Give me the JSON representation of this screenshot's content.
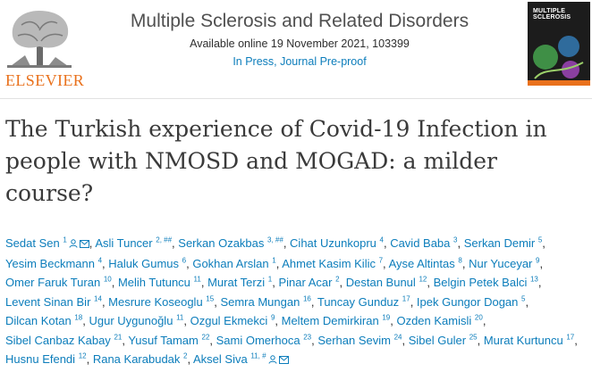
{
  "publisher": {
    "name": "ELSEVIER"
  },
  "journal": {
    "title": "Multiple Sclerosis and Related Disorders",
    "availability": "Available online 19 November 2021, 103399",
    "status": "In Press, Journal Pre-proof"
  },
  "cover": {
    "title": "MULTIPLE SCLEROSIS"
  },
  "article": {
    "title": "The Turkish experience of Covid-19 Infection in people with NMOSD and MOGAD: a milder course?"
  },
  "authors": [
    {
      "name": "Sedat Sen",
      "sup": "1",
      "icons": [
        "person",
        "mail"
      ]
    },
    {
      "name": "Asli Tuncer",
      "sup": "2, ##",
      "icons": []
    },
    {
      "name": "Serkan Ozakbas",
      "sup": "3, ##",
      "icons": []
    },
    {
      "name": "Cihat Uzunkopru",
      "sup": "4",
      "icons": []
    },
    {
      "name": "Cavid Baba",
      "sup": "3",
      "icons": []
    },
    {
      "name": "Serkan Demir",
      "sup": "5",
      "icons": []
    },
    {
      "name": "Yesim Beckmann",
      "sup": "4",
      "icons": []
    },
    {
      "name": "Haluk Gumus",
      "sup": "6",
      "icons": []
    },
    {
      "name": "Gokhan Arslan",
      "sup": "1",
      "icons": []
    },
    {
      "name": "Ahmet Kasim Kilic",
      "sup": "7",
      "icons": []
    },
    {
      "name": "Ayse Altintas",
      "sup": "8",
      "icons": []
    },
    {
      "name": "Nur Yuceyar",
      "sup": "9",
      "icons": []
    },
    {
      "name": "Omer Faruk Turan",
      "sup": "10",
      "icons": []
    },
    {
      "name": "Melih Tutuncu",
      "sup": "11",
      "icons": []
    },
    {
      "name": "Murat Terzi",
      "sup": "1",
      "icons": []
    },
    {
      "name": "Pinar Acar",
      "sup": "2",
      "icons": []
    },
    {
      "name": "Destan Bunul",
      "sup": "12",
      "icons": []
    },
    {
      "name": "Belgin Petek Balci",
      "sup": "13",
      "icons": []
    },
    {
      "name": "Levent Sinan Bir",
      "sup": "14",
      "icons": []
    },
    {
      "name": "Mesrure Koseoglu",
      "sup": "15",
      "icons": []
    },
    {
      "name": "Semra Mungan",
      "sup": "16",
      "icons": []
    },
    {
      "name": "Tuncay Gunduz",
      "sup": "17",
      "icons": []
    },
    {
      "name": "Ipek Gungor Dogan",
      "sup": "5",
      "icons": []
    },
    {
      "name": "Dilcan Kotan",
      "sup": "18",
      "icons": []
    },
    {
      "name": "Ugur Uygunoğlu",
      "sup": "11",
      "icons": []
    },
    {
      "name": "Ozgul Ekmekci",
      "sup": "9",
      "icons": []
    },
    {
      "name": "Meltem Demirkiran",
      "sup": "19",
      "icons": []
    },
    {
      "name": "Ozden Kamisli",
      "sup": "20",
      "icons": []
    },
    {
      "name": "Sibel Canbaz Kabay",
      "sup": "21",
      "icons": []
    },
    {
      "name": "Yusuf Tamam",
      "sup": "22",
      "icons": []
    },
    {
      "name": "Sami Omerhoca",
      "sup": "23",
      "icons": []
    },
    {
      "name": "Serhan Sevim",
      "sup": "24",
      "icons": []
    },
    {
      "name": "Sibel Guler",
      "sup": "25",
      "icons": []
    },
    {
      "name": "Murat Kurtuncu",
      "sup": "17",
      "icons": []
    },
    {
      "name": "Husnu Efendi",
      "sup": "12",
      "icons": []
    },
    {
      "name": "Rana Karabudak",
      "sup": "2",
      "icons": []
    },
    {
      "name": "Aksel Siva",
      "sup": "11, #",
      "icons": [
        "person",
        "mail"
      ]
    }
  ],
  "colors": {
    "link": "#0c7dbb",
    "publisher": "#e9711c",
    "text": "#2e2e2e",
    "title": "#3a3a3a"
  }
}
